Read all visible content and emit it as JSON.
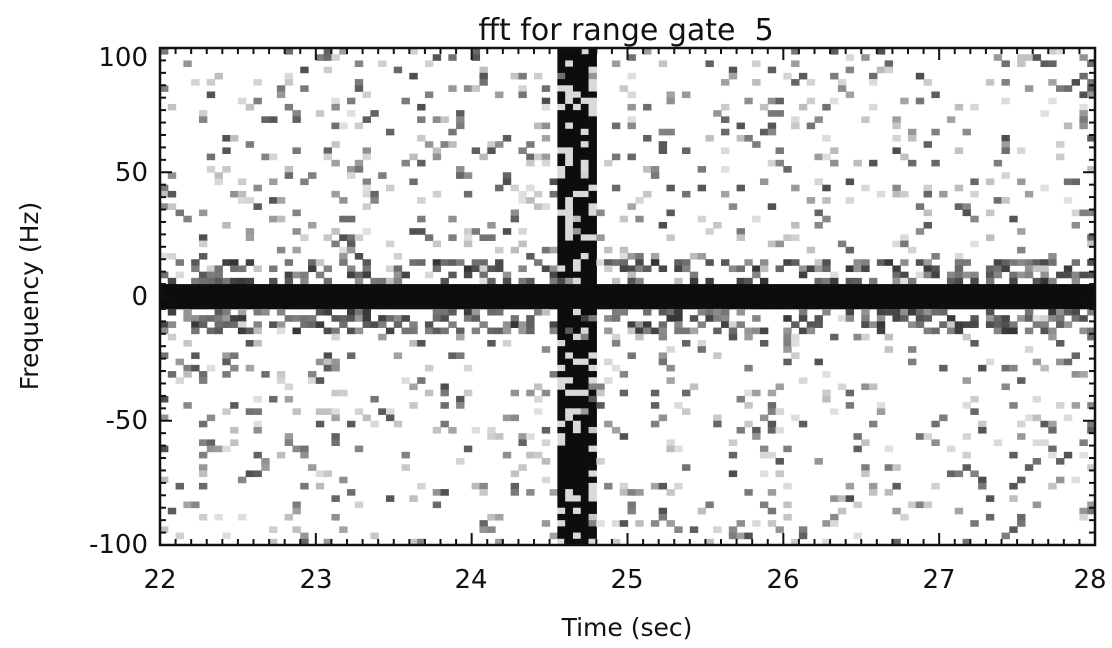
{
  "chart_data": {
    "type": "heatmap",
    "title": "fft for range gate  5",
    "xlabel": "Time (sec)",
    "ylabel": "Frequency (Hz)",
    "xlim": [
      22,
      28
    ],
    "ylim": [
      -100,
      100
    ],
    "xticks": [
      "22",
      "23",
      "24",
      "25",
      "26",
      "27",
      "28"
    ],
    "yticks": [
      "100",
      "50",
      "0",
      "-50",
      "-100"
    ],
    "grid": false,
    "colormap": "grayscale, white = low magnitude, black = high magnitude",
    "features": [
      {
        "label": "dc band",
        "x_range": [
          22,
          28
        ],
        "y_range": [
          -5,
          5
        ],
        "magnitude": 1.0
      },
      {
        "label": "broadband burst",
        "x_range": [
          24.55,
          24.82
        ],
        "y_range": [
          -100,
          100
        ],
        "magnitude": 1.0
      }
    ]
  }
}
